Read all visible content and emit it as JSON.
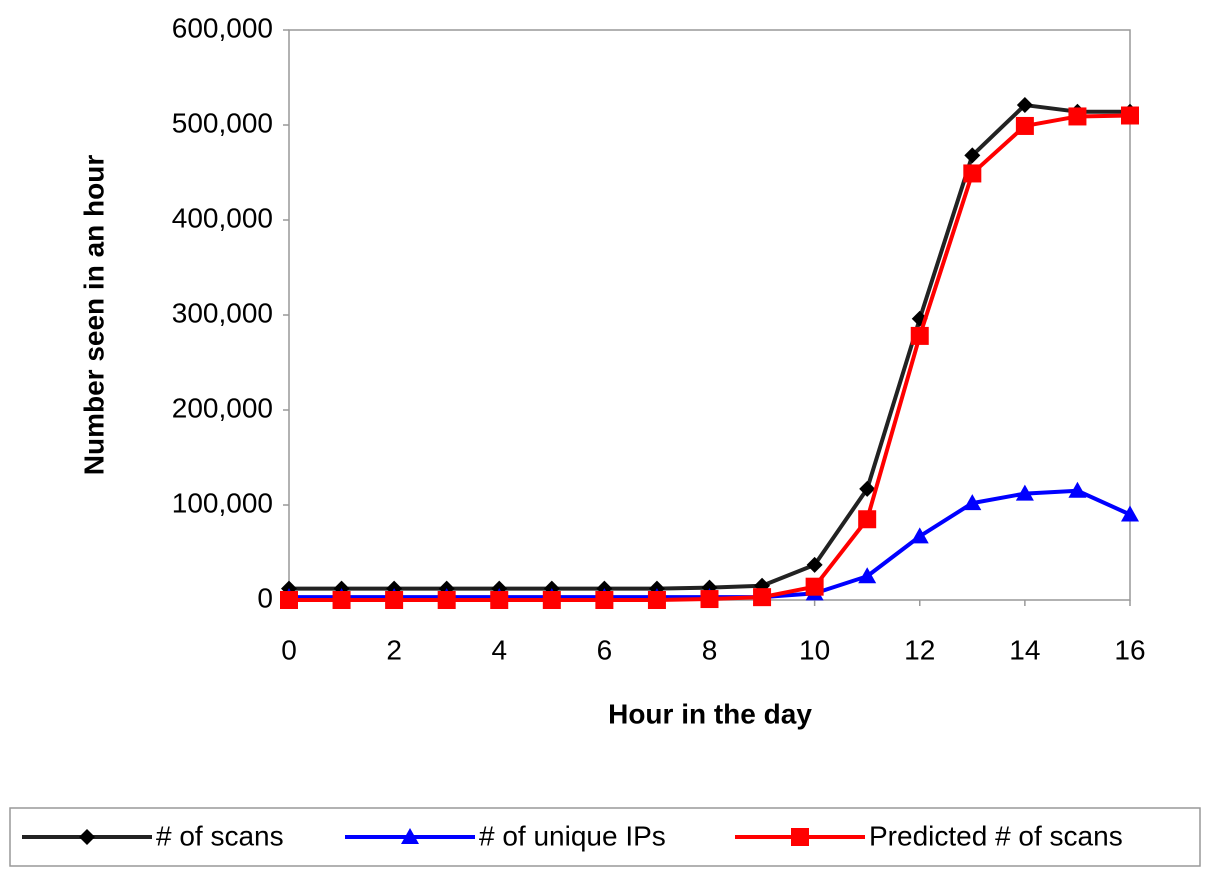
{
  "chart_data": {
    "type": "line",
    "xlabel": "Hour in the day",
    "ylabel": "Number seen in an hour",
    "x": [
      0,
      1,
      2,
      3,
      4,
      5,
      6,
      7,
      8,
      9,
      10,
      11,
      12,
      13,
      14,
      15,
      16
    ],
    "series": [
      {
        "name": "# of scans",
        "color": "#222222",
        "marker": "diamond",
        "values": [
          12000,
          12000,
          12000,
          12000,
          12000,
          12000,
          12000,
          12000,
          13000,
          15000,
          37000,
          117000,
          296000,
          468000,
          521000,
          514000,
          514000
        ]
      },
      {
        "name": "# of unique IPs",
        "color": "#0000ff",
        "marker": "triangle",
        "values": [
          3000,
          3000,
          3000,
          3000,
          3000,
          3000,
          3000,
          3000,
          3000,
          3000,
          7000,
          25000,
          67000,
          102000,
          112000,
          115000,
          90000
        ]
      },
      {
        "name": "Predicted # of scans",
        "color": "#ff0000",
        "marker": "square",
        "values": [
          0,
          0,
          0,
          0,
          0,
          0,
          0,
          0,
          1000,
          3000,
          14000,
          85000,
          278000,
          449000,
          499000,
          509000,
          510000
        ]
      }
    ],
    "xlim": [
      0,
      16
    ],
    "xticks": [
      0,
      2,
      4,
      6,
      8,
      10,
      12,
      14,
      16
    ],
    "ylim": [
      0,
      600000
    ],
    "yticks": [
      0,
      {
        "value": 100000,
        "label": "100,000"
      },
      {
        "value": 200000,
        "label": "200,000"
      },
      {
        "value": 300000,
        "label": "300,000"
      },
      {
        "value": 400000,
        "label": "400,000"
      },
      {
        "value": 500000,
        "label": "500,000"
      },
      {
        "value": 600000,
        "label": "600,000"
      }
    ],
    "grid": false,
    "legend": "bottom"
  }
}
